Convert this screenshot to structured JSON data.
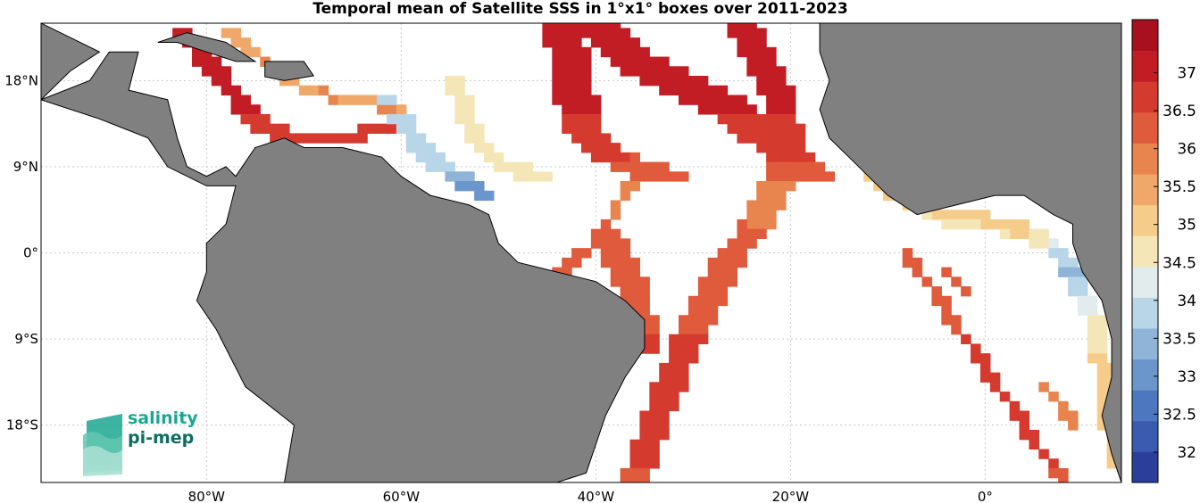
{
  "title": "Temporal mean of Satellite SSS in 1°x1° boxes over 2011-2023",
  "colors": {
    "land": "#808080",
    "ocean": "#ffffff",
    "grid": "#c8c8c8"
  },
  "map": {
    "lon_range": [
      -97,
      14
    ],
    "lat_range": [
      -24,
      24
    ],
    "lon_ticks": [
      {
        "value": -80,
        "label": "80°W"
      },
      {
        "value": -60,
        "label": "60°W"
      },
      {
        "value": -40,
        "label": "40°W"
      },
      {
        "value": -20,
        "label": "20°W"
      },
      {
        "value": 0,
        "label": "0°"
      }
    ],
    "lat_ticks": [
      {
        "value": 18,
        "label": "18°N"
      },
      {
        "value": 9,
        "label": "9°N"
      },
      {
        "value": 0,
        "label": "0°"
      },
      {
        "value": -9,
        "label": "9°S"
      },
      {
        "value": -18,
        "label": "18°S"
      }
    ]
  },
  "colorbar": {
    "min": 31.6,
    "max": 37.7,
    "ticks": [
      "37",
      "36.5",
      "36",
      "35.5",
      "35",
      "34.5",
      "34",
      "33.5",
      "33",
      "32.5",
      "32"
    ],
    "tick_values": [
      37,
      36.5,
      36,
      35.5,
      35,
      34.5,
      34,
      33.5,
      33,
      32.5,
      32
    ],
    "palette": [
      "#2b3e9a",
      "#3a5bb0",
      "#4d78c0",
      "#6b96cc",
      "#8fb4d8",
      "#b8d6e8",
      "#e3ecec",
      "#f5e6b8",
      "#f6cc8a",
      "#f0a86a",
      "#e8844e",
      "#df5b3c",
      "#d53a2e",
      "#c21d25",
      "#a8101f"
    ]
  },
  "logo": {
    "line1": "salinity",
    "line2": "pi-mep"
  }
}
